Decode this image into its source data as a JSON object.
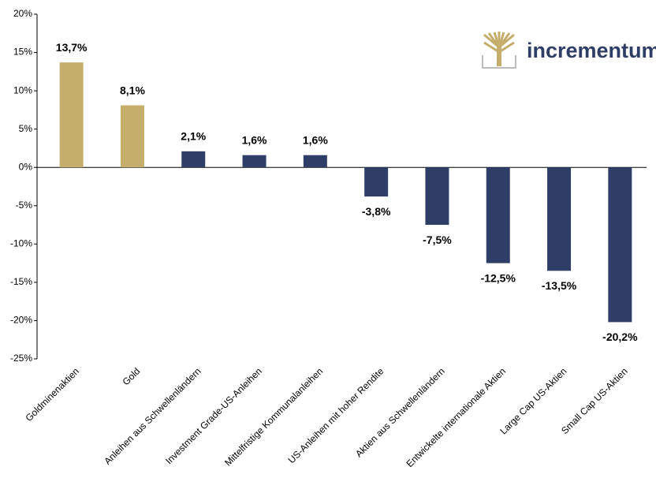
{
  "chart_data": {
    "type": "bar",
    "categories": [
      "Goldminenaktien",
      "Gold",
      "Anleihen aus Schwellenländern",
      "Investment Grade-US-Anleihen",
      "Mittelfristige Kommunalanleihen",
      "US-Anleihen mit hoher Rendite",
      "Aktien aus Schwellenländern",
      "Entwickelte internationale Aktien",
      "Large Cap US-Aktien",
      "Small Cap US-Aktien"
    ],
    "values": [
      13.7,
      8.1,
      2.1,
      1.6,
      1.6,
      -3.8,
      -7.5,
      -12.5,
      -13.5,
      -20.2
    ],
    "value_labels": [
      "13,7%",
      "8,1%",
      "2,1%",
      "1,6%",
      "1,6%",
      "-3,8%",
      "-7,5%",
      "-12,5%",
      "-13,5%",
      "-20,2%"
    ],
    "colors": [
      "#c5ad6c",
      "#c5ad6c",
      "#2e3e66",
      "#2e3e66",
      "#2e3e66",
      "#2e3e66",
      "#2e3e66",
      "#2e3e66",
      "#2e3e66",
      "#2e3e66"
    ],
    "ylim": [
      -25,
      20
    ],
    "yticks": [
      {
        "value": -25,
        "label": "-25%"
      },
      {
        "value": -20,
        "label": "-20%"
      },
      {
        "value": -15,
        "label": "-15%"
      },
      {
        "value": -10,
        "label": "-10%"
      },
      {
        "value": -5,
        "label": "-5%"
      },
      {
        "value": 0,
        "label": "0%"
      },
      {
        "value": 5,
        "label": "5%"
      },
      {
        "value": 10,
        "label": "10%"
      },
      {
        "value": 15,
        "label": "15%"
      },
      {
        "value": 20,
        "label": "20%"
      }
    ],
    "grid": false
  },
  "logo": {
    "text": "incrementum"
  }
}
